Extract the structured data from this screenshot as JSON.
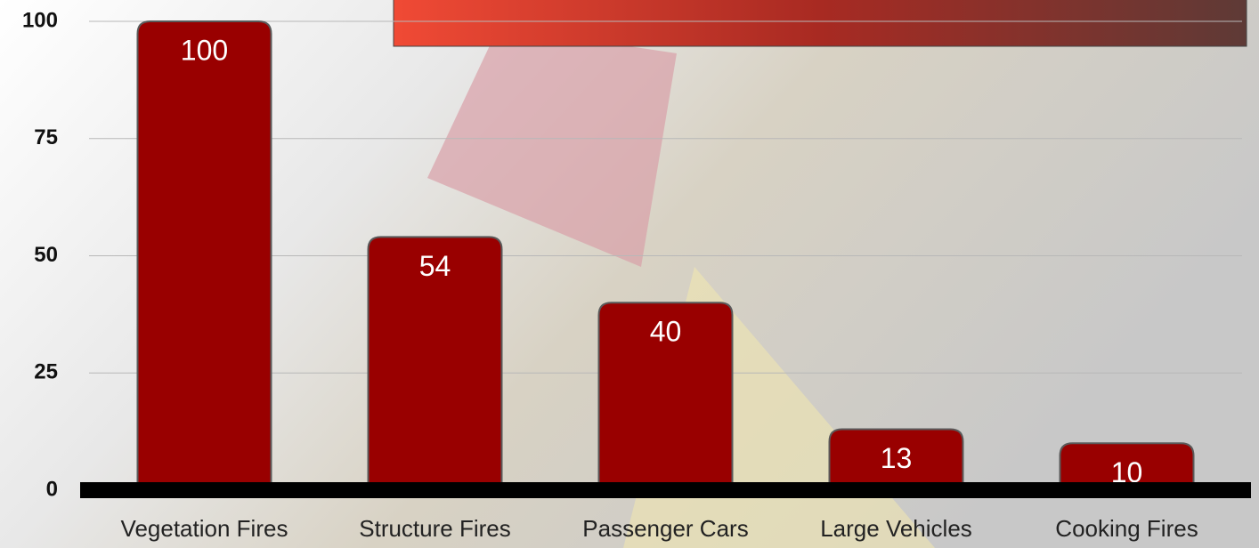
{
  "chart_data": {
    "type": "bar",
    "categories": [
      "Vegetation Fires",
      "Structure Fires",
      "Passenger Cars",
      "Large Vehicles",
      "Cooking Fires"
    ],
    "values": [
      100,
      54,
      40,
      13,
      10
    ],
    "color": "#990000",
    "ylim": [
      0,
      100
    ],
    "yticks": [
      0,
      25,
      50,
      75,
      100
    ],
    "grid": true
  }
}
